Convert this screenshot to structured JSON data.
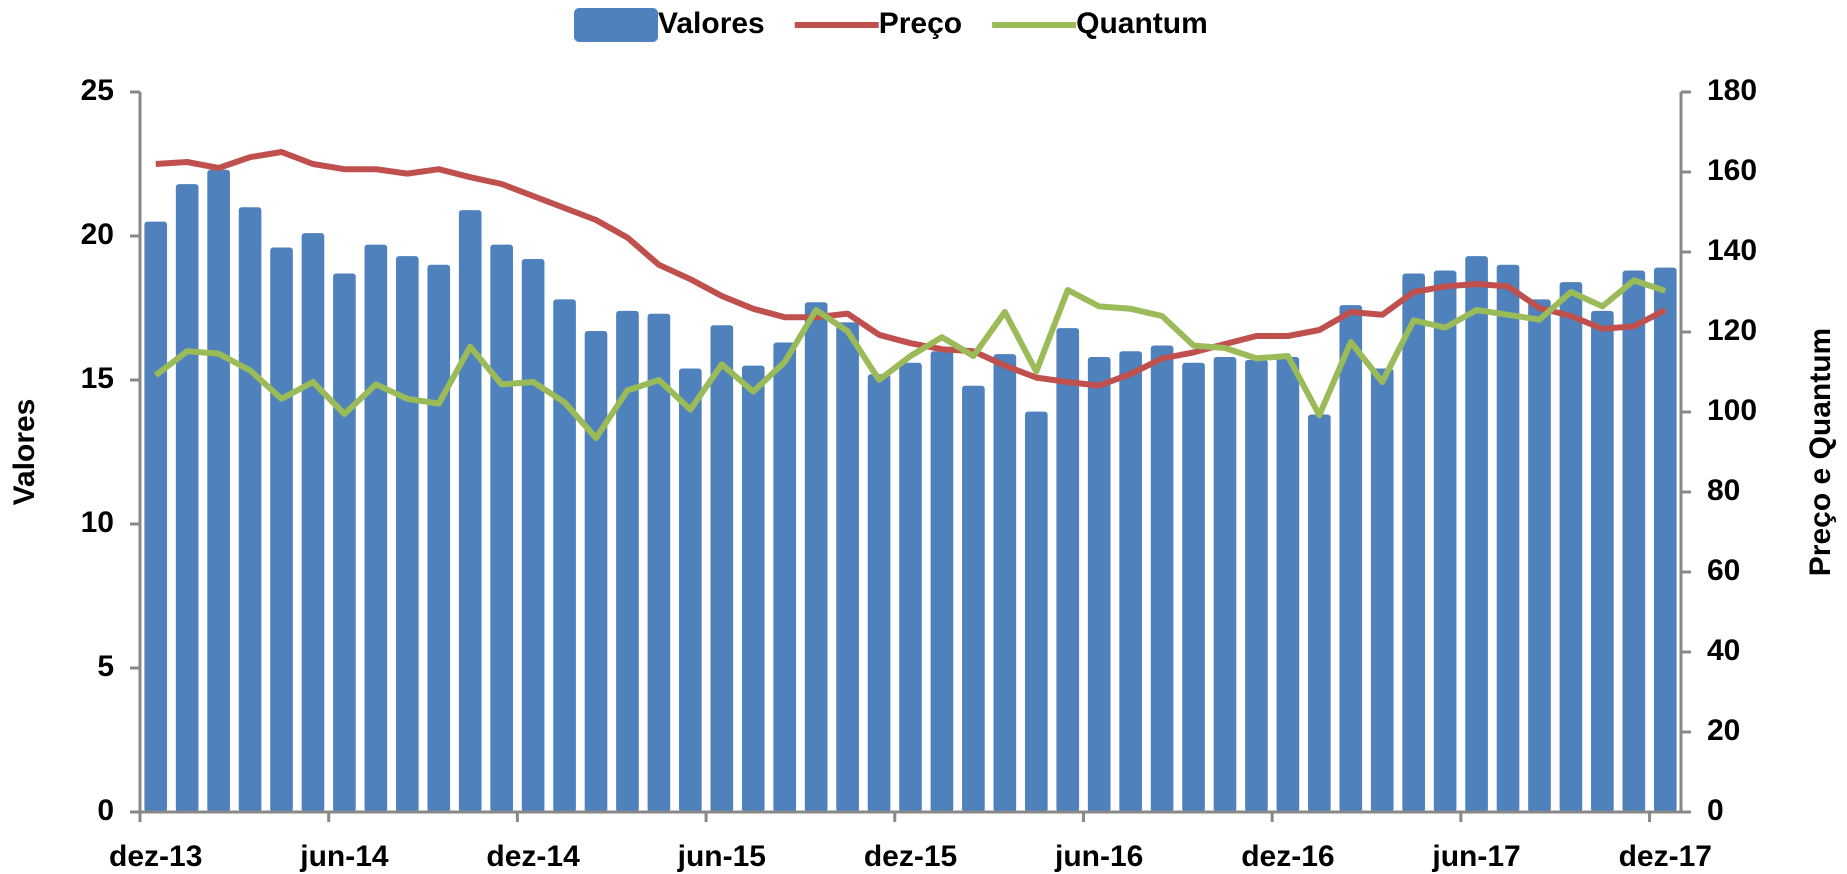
{
  "chart_data": {
    "type": "bar",
    "categories": [
      "dez-13",
      null,
      null,
      null,
      null,
      null,
      "jun-14",
      null,
      null,
      null,
      null,
      null,
      "dez-14",
      null,
      null,
      null,
      null,
      null,
      "jun-15",
      null,
      null,
      null,
      null,
      null,
      "dez-15",
      null,
      null,
      null,
      null,
      null,
      "jun-16",
      null,
      null,
      null,
      null,
      null,
      "dez-16",
      null,
      null,
      null,
      null,
      null,
      "jun-17",
      null,
      null,
      null,
      null,
      null,
      "dez-17"
    ],
    "y_label": "Valores",
    "y2_label": "Preço e Quantum",
    "ylim": [
      0,
      25
    ],
    "yticks": [
      0,
      5,
      10,
      15,
      20,
      25
    ],
    "y2lim": [
      0,
      180
    ],
    "y2ticks": [
      0,
      20,
      40,
      60,
      80,
      100,
      120,
      140,
      160,
      180
    ],
    "grid": false,
    "legend": "top",
    "series": [
      {
        "name": "Valores",
        "type": "bar",
        "color": "#4f81bd",
        "values": [
          20.5,
          21.8,
          22.3,
          21.0,
          19.6,
          20.1,
          18.7,
          19.7,
          19.3,
          19.0,
          20.9,
          19.7,
          19.2,
          17.8,
          16.7,
          17.4,
          17.3,
          15.4,
          16.9,
          15.5,
          16.3,
          17.7,
          17.0,
          15.2,
          15.6,
          16.0,
          14.8,
          15.9,
          13.9,
          16.8,
          15.8,
          16.0,
          16.2,
          15.6,
          15.8,
          15.7,
          15.8,
          13.8,
          17.6,
          15.4,
          18.7,
          18.8,
          19.3,
          19.0,
          17.8,
          18.4,
          17.4,
          18.8,
          18.9
        ]
      },
      {
        "name": "Preço",
        "type": "line",
        "axis": "y2",
        "color": "#c0504d",
        "values": [
          162,
          162.5,
          161,
          163.7,
          165,
          162,
          160.7,
          160.7,
          159.6,
          160.7,
          158.7,
          157,
          154,
          151,
          148,
          143.6,
          136.8,
          133.2,
          129,
          125.8,
          123.7,
          123.7,
          124.6,
          119.3,
          117.2,
          115.7,
          115.2,
          111.6,
          108.6,
          107.5,
          106.6,
          109.5,
          113.4,
          114.9,
          117,
          119,
          119,
          120.5,
          125,
          124.3,
          130,
          131.4,
          132,
          131.4,
          126,
          124,
          120.8,
          121.4,
          125.5
        ]
      },
      {
        "name": "Quantum",
        "type": "line",
        "axis": "y2",
        "color": "#9bbb59",
        "values": [
          109.2,
          115.2,
          114.6,
          110.4,
          103.3,
          107.5,
          99.5,
          106.9,
          103.3,
          102.1,
          116.3,
          106.9,
          107.5,
          102.4,
          93.5,
          105.4,
          108,
          100.6,
          111.9,
          105.1,
          112.5,
          125.5,
          120.2,
          108,
          114,
          118.7,
          114,
          125,
          110.1,
          130.5,
          126.4,
          125.8,
          124,
          116.6,
          116,
          113.4,
          114,
          99.2,
          117.5,
          107.5,
          122.9,
          121.1,
          125.5,
          124.3,
          123.1,
          130,
          126.4,
          132.9,
          130.3
        ]
      }
    ]
  }
}
